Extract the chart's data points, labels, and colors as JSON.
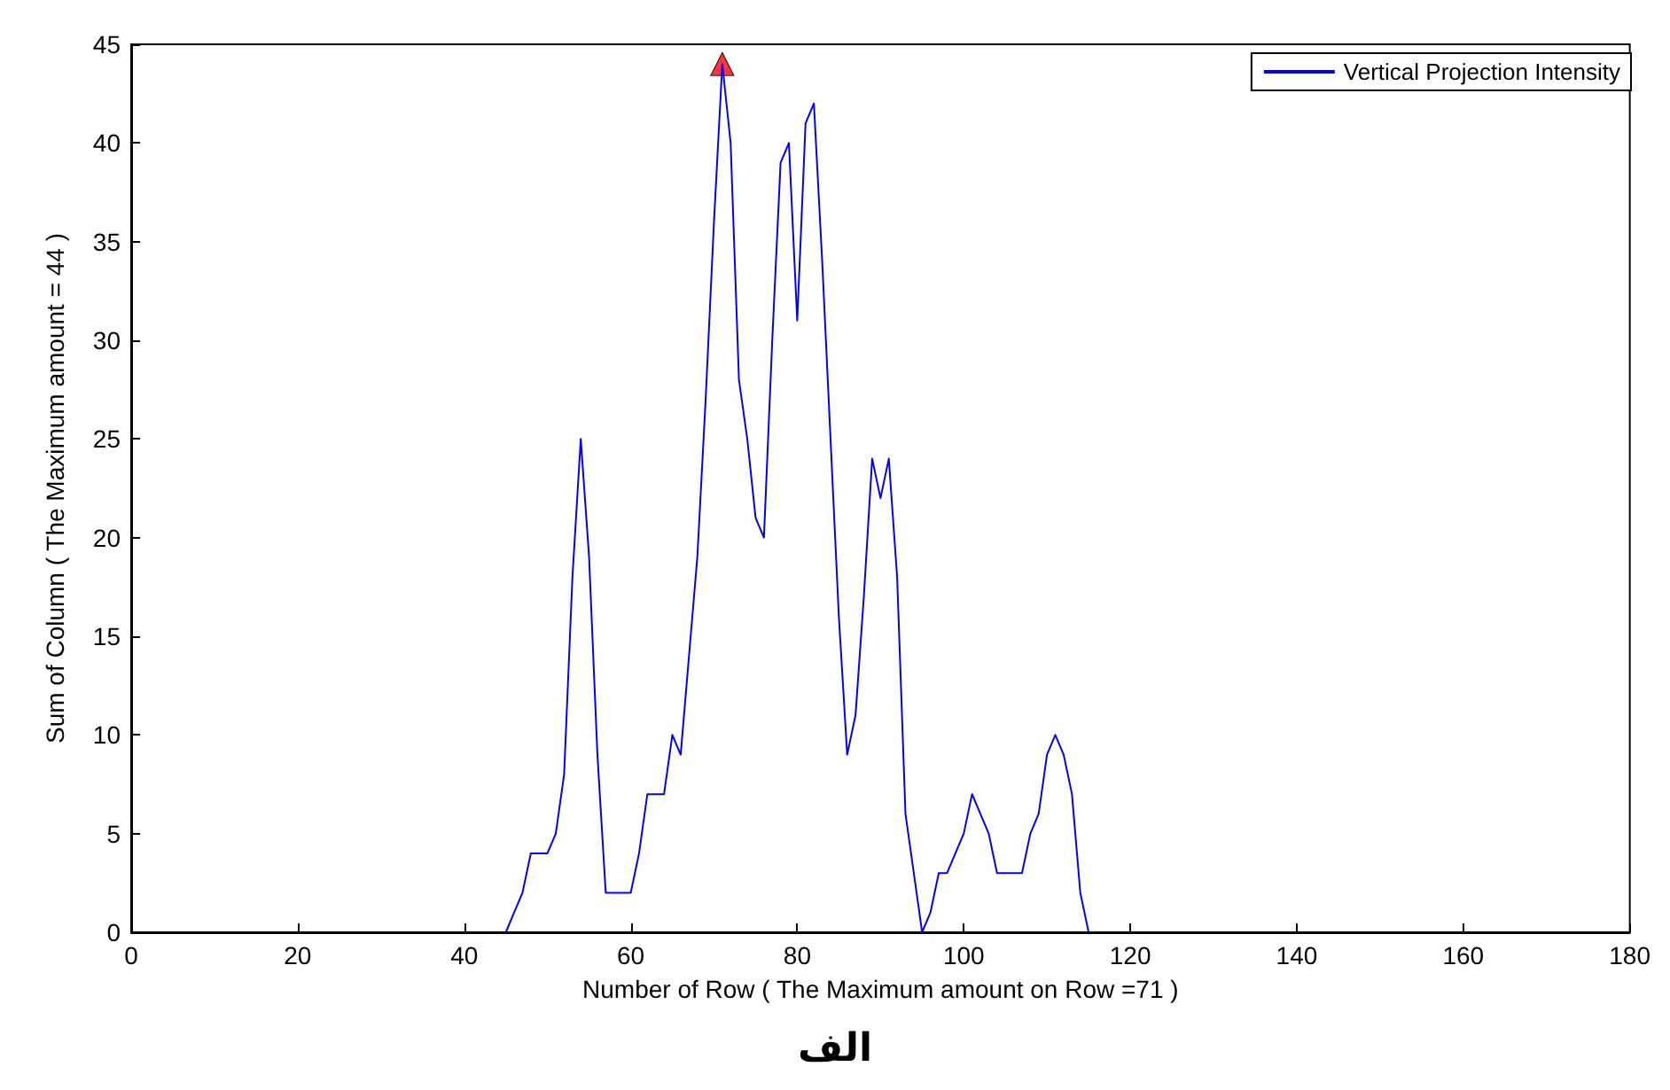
{
  "chart_data": {
    "type": "line",
    "xlabel": "Number of Row ( The Maximum amount on Row =71 )",
    "ylabel": "Sum of Column ( The Maximum amount = 44 )",
    "xlim": [
      0,
      180
    ],
    "xticks": [
      0,
      20,
      40,
      60,
      80,
      100,
      120,
      140,
      160,
      180
    ],
    "ylim": [
      0,
      45
    ],
    "yticks": [
      0,
      5,
      10,
      15,
      20,
      25,
      30,
      35,
      40,
      45
    ],
    "grid": false,
    "legend": "top right",
    "annotations": [
      "الف"
    ],
    "series": [
      {
        "name": "Vertical Projection Intensity",
        "color": "#0000ff",
        "marker": "none",
        "x": [
          45,
          46,
          47,
          48,
          49,
          50,
          51,
          52,
          53,
          54,
          55,
          56,
          57,
          58,
          59,
          60,
          61,
          62,
          63,
          64,
          65,
          66,
          67,
          68,
          69,
          70,
          71,
          72,
          73,
          74,
          75,
          76,
          77,
          78,
          79,
          80,
          81,
          82,
          83,
          84,
          85,
          86,
          87,
          88,
          89,
          90,
          91,
          92,
          93,
          94,
          95,
          96,
          97,
          98,
          99,
          100,
          101,
          102,
          103,
          104,
          105,
          106,
          107,
          108,
          109,
          110,
          111,
          112,
          113,
          114,
          115
        ],
        "values": [
          0,
          1,
          2,
          4,
          4,
          4,
          5,
          8,
          18,
          25,
          19,
          9,
          2,
          2,
          2,
          2,
          4,
          7,
          7,
          7,
          10,
          9,
          14,
          19,
          27,
          36,
          44,
          40,
          28,
          25,
          21,
          20,
          30,
          39,
          40,
          31,
          41,
          42,
          34,
          25,
          16,
          9,
          11,
          17,
          24,
          22,
          24,
          18,
          6,
          3,
          0,
          1,
          3,
          3,
          4,
          5,
          7,
          6,
          5,
          3,
          3,
          3,
          3,
          5,
          6,
          9,
          10,
          9,
          7,
          2,
          0
        ]
      },
      {
        "type": "scatter",
        "color": "#ff0000",
        "marker": "triangle",
        "x": [
          71
        ],
        "values": [
          44
        ]
      }
    ]
  }
}
